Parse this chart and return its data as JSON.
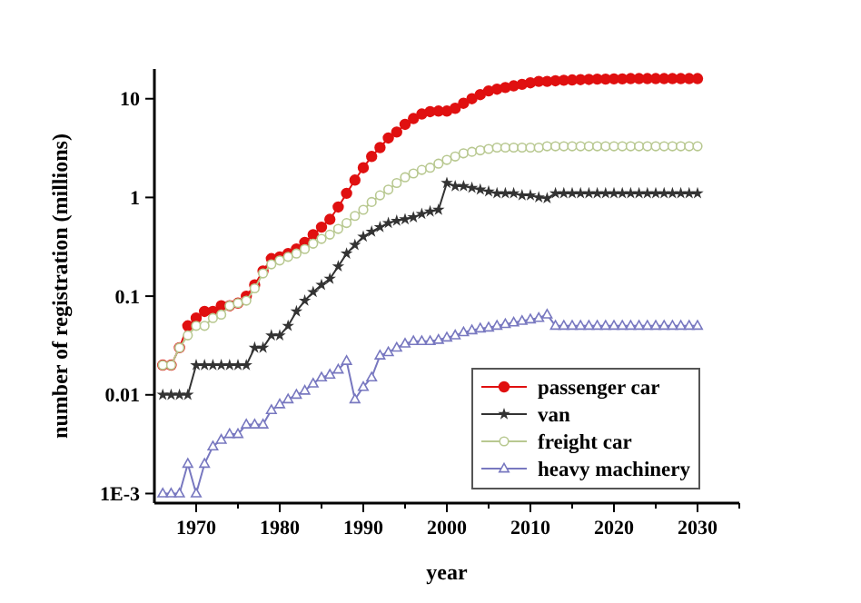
{
  "chart_data": {
    "type": "line",
    "xlabel": "year",
    "ylabel": "number of registration (millions)",
    "log": "y",
    "xlim": [
      1965,
      2035
    ],
    "ylim": [
      0.0008,
      20
    ],
    "xticks": [
      1970,
      {
        "value": 1975,
        "label": null
      },
      1980,
      {
        "value": 1985,
        "label": null
      },
      1990,
      {
        "value": 1995,
        "label": null
      },
      2000,
      {
        "value": 2005,
        "label": null
      },
      2010,
      {
        "value": 2015,
        "label": null
      },
      2020,
      {
        "value": 2025,
        "label": null
      },
      2030,
      {
        "value": 2035,
        "label": null
      }
    ],
    "yticks": [
      {
        "value": 0.001,
        "label": "1E-3"
      },
      0.01,
      0.1,
      1,
      10
    ],
    "grid": false,
    "legend": "bottom right",
    "line_style": "solid",
    "x": [
      1966,
      1967,
      1968,
      1969,
      1970,
      1971,
      1972,
      1973,
      1974,
      1975,
      1976,
      1977,
      1978,
      1979,
      1980,
      1981,
      1982,
      1983,
      1984,
      1985,
      1986,
      1987,
      1988,
      1989,
      1990,
      1991,
      1992,
      1993,
      1994,
      1995,
      1996,
      1997,
      1998,
      1999,
      2000,
      2001,
      2002,
      2003,
      2004,
      2005,
      2006,
      2007,
      2008,
      2009,
      2010,
      2011,
      2012,
      2013,
      2014,
      2015,
      2016,
      2017,
      2018,
      2019,
      2020,
      2021,
      2022,
      2023,
      2024,
      2025,
      2026,
      2027,
      2028,
      2029,
      2030
    ],
    "series": [
      {
        "name": "passenger car",
        "color": "#e01010",
        "marker": "circle",
        "values": [
          0.02,
          0.02,
          0.03,
          0.05,
          0.06,
          0.07,
          0.07,
          0.08,
          0.08,
          0.085,
          0.1,
          0.13,
          0.18,
          0.24,
          0.25,
          0.27,
          0.3,
          0.35,
          0.42,
          0.5,
          0.6,
          0.8,
          1.1,
          1.5,
          2.0,
          2.6,
          3.2,
          4.0,
          4.6,
          5.5,
          6.3,
          7.0,
          7.4,
          7.5,
          7.5,
          8.0,
          9.0,
          10,
          11,
          12,
          12.5,
          13,
          13.5,
          14,
          14.5,
          15,
          15,
          15.2,
          15.4,
          15.5,
          15.6,
          15.7,
          15.8,
          15.8,
          15.9,
          15.9,
          16,
          16,
          16,
          16,
          16,
          16,
          16,
          16,
          16
        ]
      },
      {
        "name": "van",
        "color": "#333333",
        "marker": "star",
        "values": [
          0.01,
          0.01,
          0.01,
          0.01,
          0.02,
          0.02,
          0.02,
          0.02,
          0.02,
          0.02,
          0.02,
          0.03,
          0.03,
          0.04,
          0.04,
          0.05,
          0.07,
          0.09,
          0.11,
          0.13,
          0.15,
          0.2,
          0.27,
          0.33,
          0.4,
          0.45,
          0.5,
          0.55,
          0.58,
          0.6,
          0.63,
          0.68,
          0.72,
          0.75,
          1.4,
          1.3,
          1.3,
          1.25,
          1.2,
          1.15,
          1.1,
          1.1,
          1.1,
          1.05,
          1.05,
          1.0,
          0.98,
          1.1,
          1.1,
          1.1,
          1.1,
          1.1,
          1.1,
          1.1,
          1.1,
          1.1,
          1.1,
          1.1,
          1.1,
          1.1,
          1.1,
          1.1,
          1.1,
          1.1,
          1.1
        ]
      },
      {
        "name": "freight car",
        "color": "#b8c890",
        "marker": "circle-open",
        "values": [
          0.02,
          0.02,
          0.03,
          0.04,
          0.05,
          0.05,
          0.06,
          0.065,
          0.08,
          0.085,
          0.09,
          0.12,
          0.17,
          0.21,
          0.23,
          0.25,
          0.27,
          0.3,
          0.34,
          0.38,
          0.42,
          0.48,
          0.55,
          0.65,
          0.75,
          0.9,
          1.05,
          1.2,
          1.4,
          1.6,
          1.75,
          1.9,
          2.0,
          2.2,
          2.4,
          2.6,
          2.8,
          2.9,
          3.0,
          3.1,
          3.2,
          3.2,
          3.2,
          3.2,
          3.2,
          3.2,
          3.3,
          3.3,
          3.3,
          3.3,
          3.3,
          3.3,
          3.3,
          3.3,
          3.3,
          3.3,
          3.3,
          3.3,
          3.3,
          3.3,
          3.3,
          3.3,
          3.3,
          3.3,
          3.3
        ]
      },
      {
        "name": "heavy machinery",
        "color": "#7878c0",
        "marker": "triangle-open",
        "values": [
          0.001,
          0.001,
          0.001,
          0.002,
          0.001,
          0.002,
          0.003,
          0.0035,
          0.004,
          0.004,
          0.005,
          0.005,
          0.005,
          0.007,
          0.008,
          0.009,
          0.01,
          0.011,
          0.013,
          0.015,
          0.016,
          0.018,
          0.022,
          0.009,
          0.012,
          0.015,
          0.025,
          0.027,
          0.03,
          0.033,
          0.035,
          0.035,
          0.035,
          0.036,
          0.038,
          0.04,
          0.043,
          0.045,
          0.047,
          0.048,
          0.05,
          0.052,
          0.054,
          0.056,
          0.058,
          0.06,
          0.065,
          0.05,
          0.05,
          0.05,
          0.05,
          0.05,
          0.05,
          0.05,
          0.05,
          0.05,
          0.05,
          0.05,
          0.05,
          0.05,
          0.05,
          0.05,
          0.05,
          0.05,
          0.05
        ]
      }
    ]
  }
}
